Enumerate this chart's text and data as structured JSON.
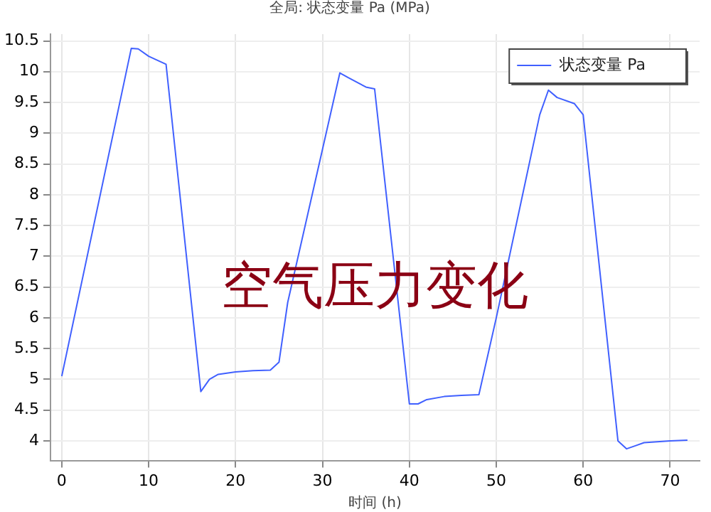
{
  "chart_data": {
    "type": "line",
    "title": "全局: 状态变量 Pa (MPa)",
    "xlabel": "时间 (h)",
    "annotations": [
      "空气压力变化"
    ],
    "x": [
      0,
      8,
      8.8,
      10,
      12,
      16,
      17,
      18,
      20,
      22,
      24,
      25,
      26,
      32,
      33,
      35,
      36,
      40,
      41,
      42,
      44,
      46,
      48,
      50,
      55,
      56,
      57,
      59,
      60,
      64,
      65,
      66,
      67,
      70,
      72
    ],
    "series": [
      {
        "name": "状态变量 Pa",
        "color": "#4060ff",
        "values": [
          5.05,
          10.38,
          10.37,
          10.25,
          10.12,
          4.8,
          5.0,
          5.08,
          5.12,
          5.14,
          5.15,
          5.28,
          6.25,
          9.98,
          9.9,
          9.75,
          9.72,
          4.6,
          4.6,
          4.67,
          4.72,
          4.74,
          4.75,
          6.0,
          9.3,
          9.7,
          9.58,
          9.48,
          9.3,
          4.0,
          3.87,
          3.92,
          3.97,
          4.0,
          4.01
        ]
      }
    ],
    "xlim": [
      -1.3,
      73.4
    ],
    "xticks": [
      0,
      10,
      20,
      30,
      40,
      50,
      60,
      70
    ],
    "ylim": [
      3.68,
      10.61
    ],
    "yticks": [
      4,
      4.5,
      5,
      5.5,
      6,
      6.5,
      7,
      7.5,
      8,
      8.5,
      9,
      9.5,
      10,
      10.5
    ],
    "grid": true,
    "legend": "top right",
    "marker": "none",
    "line_style": "solid"
  }
}
